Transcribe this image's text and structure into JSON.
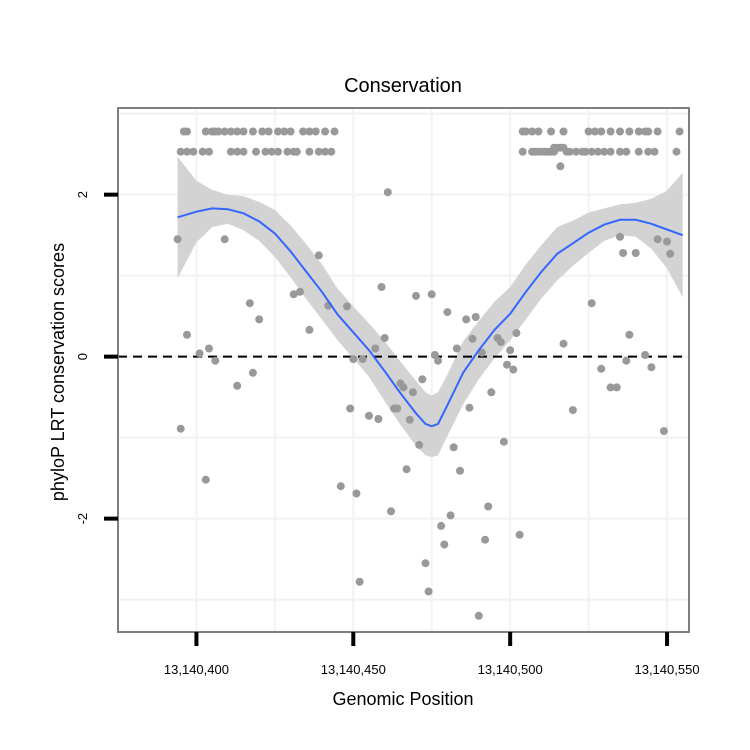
{
  "chart_data": {
    "type": "scatter",
    "title": "Conservation",
    "xlabel": "Genomic Position",
    "ylabel": "phyloP LRT conservation scores",
    "xlim": [
      13140375,
      13140557
    ],
    "ylim": [
      -3.4,
      3.07
    ],
    "x_ticks": [
      13140400,
      13140450,
      13140500,
      13140550
    ],
    "x_tick_labels": [
      "13,140,400",
      "13,140,450",
      "13,140,500",
      "13,140,550"
    ],
    "y_ticks": [
      -2,
      0,
      2
    ],
    "y_tick_labels": [
      "-2",
      "0",
      "2"
    ],
    "reference_line_y": 0,
    "colors": {
      "points": "#999999",
      "smooth_line": "#3366FF",
      "confidence_band": "#d3d3d3",
      "reference_line": "#000000",
      "panel_border": "#7f7f7f",
      "grid": "#f2f2f2"
    },
    "points": [
      [
        13140394,
        1.45
      ],
      [
        13140395,
        -0.89
      ],
      [
        13140397,
        0.27
      ],
      [
        13140401,
        0.04
      ],
      [
        13140403,
        -1.52
      ],
      [
        13140404,
        0.1
      ],
      [
        13140406,
        -0.05
      ],
      [
        13140409,
        1.45
      ],
      [
        13140413,
        -0.36
      ],
      [
        13140417,
        0.66
      ],
      [
        13140418,
        -0.2
      ],
      [
        13140420,
        0.46
      ],
      [
        13140431,
        0.77
      ],
      [
        13140433,
        0.8
      ],
      [
        13140436,
        0.33
      ],
      [
        13140439,
        1.25
      ],
      [
        13140442,
        0.63
      ],
      [
        13140446,
        -1.6
      ],
      [
        13140448,
        0.62
      ],
      [
        13140449,
        -0.64
      ],
      [
        13140450,
        -0.03
      ],
      [
        13140451,
        -1.69
      ],
      [
        13140452,
        -2.78
      ],
      [
        13140453,
        -0.03
      ],
      [
        13140455,
        -0.73
      ],
      [
        13140457,
        0.1
      ],
      [
        13140458,
        -0.77
      ],
      [
        13140459,
        0.86
      ],
      [
        13140460,
        0.23
      ],
      [
        13140461,
        2.03
      ],
      [
        13140462,
        -1.91
      ],
      [
        13140463,
        -0.64
      ],
      [
        13140464,
        -0.64
      ],
      [
        13140465,
        -0.33
      ],
      [
        13140466,
        -0.38
      ],
      [
        13140467,
        -1.39
      ],
      [
        13140468,
        -0.78
      ],
      [
        13140469,
        -0.44
      ],
      [
        13140470,
        0.75
      ],
      [
        13140471,
        -1.09
      ],
      [
        13140472,
        -0.28
      ],
      [
        13140473,
        -2.55
      ],
      [
        13140474,
        -2.9
      ],
      [
        13140475,
        0.77
      ],
      [
        13140476,
        0.02
      ],
      [
        13140477,
        -0.05
      ],
      [
        13140478,
        -2.09
      ],
      [
        13140479,
        -2.32
      ],
      [
        13140480,
        0.55
      ],
      [
        13140481,
        -1.96
      ],
      [
        13140482,
        -1.12
      ],
      [
        13140483,
        0.1
      ],
      [
        13140484,
        -1.41
      ],
      [
        13140486,
        0.46
      ],
      [
        13140487,
        -0.63
      ],
      [
        13140488,
        0.22
      ],
      [
        13140489,
        0.49
      ],
      [
        13140490,
        -3.2
      ],
      [
        13140491,
        0.05
      ],
      [
        13140492,
        -2.26
      ],
      [
        13140493,
        -1.85
      ],
      [
        13140494,
        -0.44
      ],
      [
        13140496,
        0.23
      ],
      [
        13140497,
        0.18
      ],
      [
        13140498,
        -1.05
      ],
      [
        13140499,
        -0.1
      ],
      [
        13140500,
        0.08
      ],
      [
        13140501,
        -0.16
      ],
      [
        13140502,
        0.29
      ],
      [
        13140503,
        -2.2
      ],
      [
        13140508,
        2.53
      ],
      [
        13140509,
        2.53
      ],
      [
        13140510,
        2.53
      ],
      [
        13140511,
        2.53
      ],
      [
        13140512,
        2.53
      ],
      [
        13140513,
        2.53
      ],
      [
        13140514,
        2.53
      ],
      [
        13140516,
        2.35
      ],
      [
        13140517,
        0.16
      ],
      [
        13140520,
        -0.66
      ],
      [
        13140526,
        0.66
      ],
      [
        13140529,
        -0.15
      ],
      [
        13140532,
        -0.38
      ],
      [
        13140534,
        -0.38
      ],
      [
        13140535,
        1.48
      ],
      [
        13140536,
        1.28
      ],
      [
        13140537,
        -0.05
      ],
      [
        13140538,
        0.27
      ],
      [
        13140540,
        1.28
      ],
      [
        13140543,
        0.02
      ],
      [
        13140545,
        -0.13
      ],
      [
        13140547,
        1.45
      ],
      [
        13140549,
        -0.92
      ],
      [
        13140550,
        1.42
      ],
      [
        13140551,
        1.27
      ],
      [
        13140396,
        2.78
      ],
      [
        13140397,
        2.78
      ],
      [
        13140403,
        2.78
      ],
      [
        13140405,
        2.78
      ],
      [
        13140406,
        2.78
      ],
      [
        13140407,
        2.78
      ],
      [
        13140409,
        2.78
      ],
      [
        13140411,
        2.78
      ],
      [
        13140413,
        2.78
      ],
      [
        13140415,
        2.78
      ],
      [
        13140418,
        2.78
      ],
      [
        13140421,
        2.78
      ],
      [
        13140423,
        2.78
      ],
      [
        13140426,
        2.78
      ],
      [
        13140428,
        2.78
      ],
      [
        13140430,
        2.78
      ],
      [
        13140434,
        2.78
      ],
      [
        13140436,
        2.78
      ],
      [
        13140438,
        2.78
      ],
      [
        13140441,
        2.78
      ],
      [
        13140444,
        2.78
      ],
      [
        13140395,
        2.53
      ],
      [
        13140397,
        2.53
      ],
      [
        13140399,
        2.53
      ],
      [
        13140402,
        2.53
      ],
      [
        13140404,
        2.53
      ],
      [
        13140411,
        2.53
      ],
      [
        13140413,
        2.53
      ],
      [
        13140415,
        2.53
      ],
      [
        13140419,
        2.53
      ],
      [
        13140422,
        2.53
      ],
      [
        13140424,
        2.53
      ],
      [
        13140426,
        2.53
      ],
      [
        13140429,
        2.53
      ],
      [
        13140431,
        2.53
      ],
      [
        13140432,
        2.53
      ],
      [
        13140436,
        2.53
      ],
      [
        13140439,
        2.53
      ],
      [
        13140441,
        2.53
      ],
      [
        13140443,
        2.53
      ],
      [
        13140504,
        2.78
      ],
      [
        13140505,
        2.78
      ],
      [
        13140507,
        2.78
      ],
      [
        13140509,
        2.78
      ],
      [
        13140513,
        2.78
      ],
      [
        13140517,
        2.78
      ],
      [
        13140525,
        2.78
      ],
      [
        13140527,
        2.78
      ],
      [
        13140529,
        2.78
      ],
      [
        13140532,
        2.78
      ],
      [
        13140535,
        2.78
      ],
      [
        13140538,
        2.78
      ],
      [
        13140541,
        2.78
      ],
      [
        13140543,
        2.78
      ],
      [
        13140544,
        2.78
      ],
      [
        13140547,
        2.78
      ],
      [
        13140554,
        2.78
      ],
      [
        13140504,
        2.53
      ],
      [
        13140507,
        2.53
      ],
      [
        13140514,
        2.58
      ],
      [
        13140515,
        2.58
      ],
      [
        13140516,
        2.58
      ],
      [
        13140517,
        2.58
      ],
      [
        13140518,
        2.53
      ],
      [
        13140519,
        2.53
      ],
      [
        13140521,
        2.53
      ],
      [
        13140523,
        2.53
      ],
      [
        13140524,
        2.53
      ],
      [
        13140526,
        2.53
      ],
      [
        13140528,
        2.53
      ],
      [
        13140530,
        2.53
      ],
      [
        13140532,
        2.53
      ],
      [
        13140535,
        2.53
      ],
      [
        13140537,
        2.53
      ],
      [
        13140541,
        2.53
      ],
      [
        13140544,
        2.53
      ],
      [
        13140546,
        2.53
      ],
      [
        13140553,
        2.53
      ]
    ],
    "smooth": {
      "x": [
        13140394,
        13140400,
        13140405,
        13140410,
        13140415,
        13140420,
        13140425,
        13140430,
        13140435,
        13140440,
        13140445,
        13140450,
        13140455,
        13140460,
        13140465,
        13140470,
        13140473,
        13140475,
        13140477,
        13140480,
        13140485,
        13140490,
        13140495,
        13140500,
        13140505,
        13140510,
        13140515,
        13140520,
        13140525,
        13140530,
        13140535,
        13140540,
        13140545,
        13140550,
        13140555
      ],
      "y": [
        1.72,
        1.79,
        1.83,
        1.82,
        1.77,
        1.67,
        1.52,
        1.3,
        1.05,
        0.8,
        0.52,
        0.3,
        0.08,
        -0.18,
        -0.45,
        -0.7,
        -0.83,
        -0.86,
        -0.83,
        -0.6,
        -0.2,
        0.08,
        0.33,
        0.53,
        0.8,
        1.05,
        1.27,
        1.4,
        1.53,
        1.63,
        1.69,
        1.69,
        1.64,
        1.57,
        1.5
      ],
      "lower": [
        0.97,
        1.41,
        1.6,
        1.64,
        1.56,
        1.43,
        1.23,
        0.98,
        0.71,
        0.46,
        0.2,
        -0.02,
        -0.25,
        -0.55,
        -0.84,
        -1.1,
        -1.22,
        -1.24,
        -1.22,
        -0.98,
        -0.59,
        -0.28,
        -0.02,
        0.2,
        0.46,
        0.72,
        0.94,
        1.12,
        1.28,
        1.43,
        1.5,
        1.48,
        1.33,
        1.09,
        0.73
      ],
      "upper": [
        2.47,
        2.17,
        2.06,
        2.0,
        1.98,
        1.91,
        1.81,
        1.62,
        1.39,
        1.14,
        0.84,
        0.62,
        0.41,
        0.19,
        -0.06,
        -0.3,
        -0.44,
        -0.48,
        -0.44,
        -0.22,
        0.19,
        0.44,
        0.68,
        0.86,
        1.14,
        1.38,
        1.6,
        1.68,
        1.78,
        1.83,
        1.88,
        1.9,
        1.95,
        2.05,
        2.27
      ]
    }
  }
}
